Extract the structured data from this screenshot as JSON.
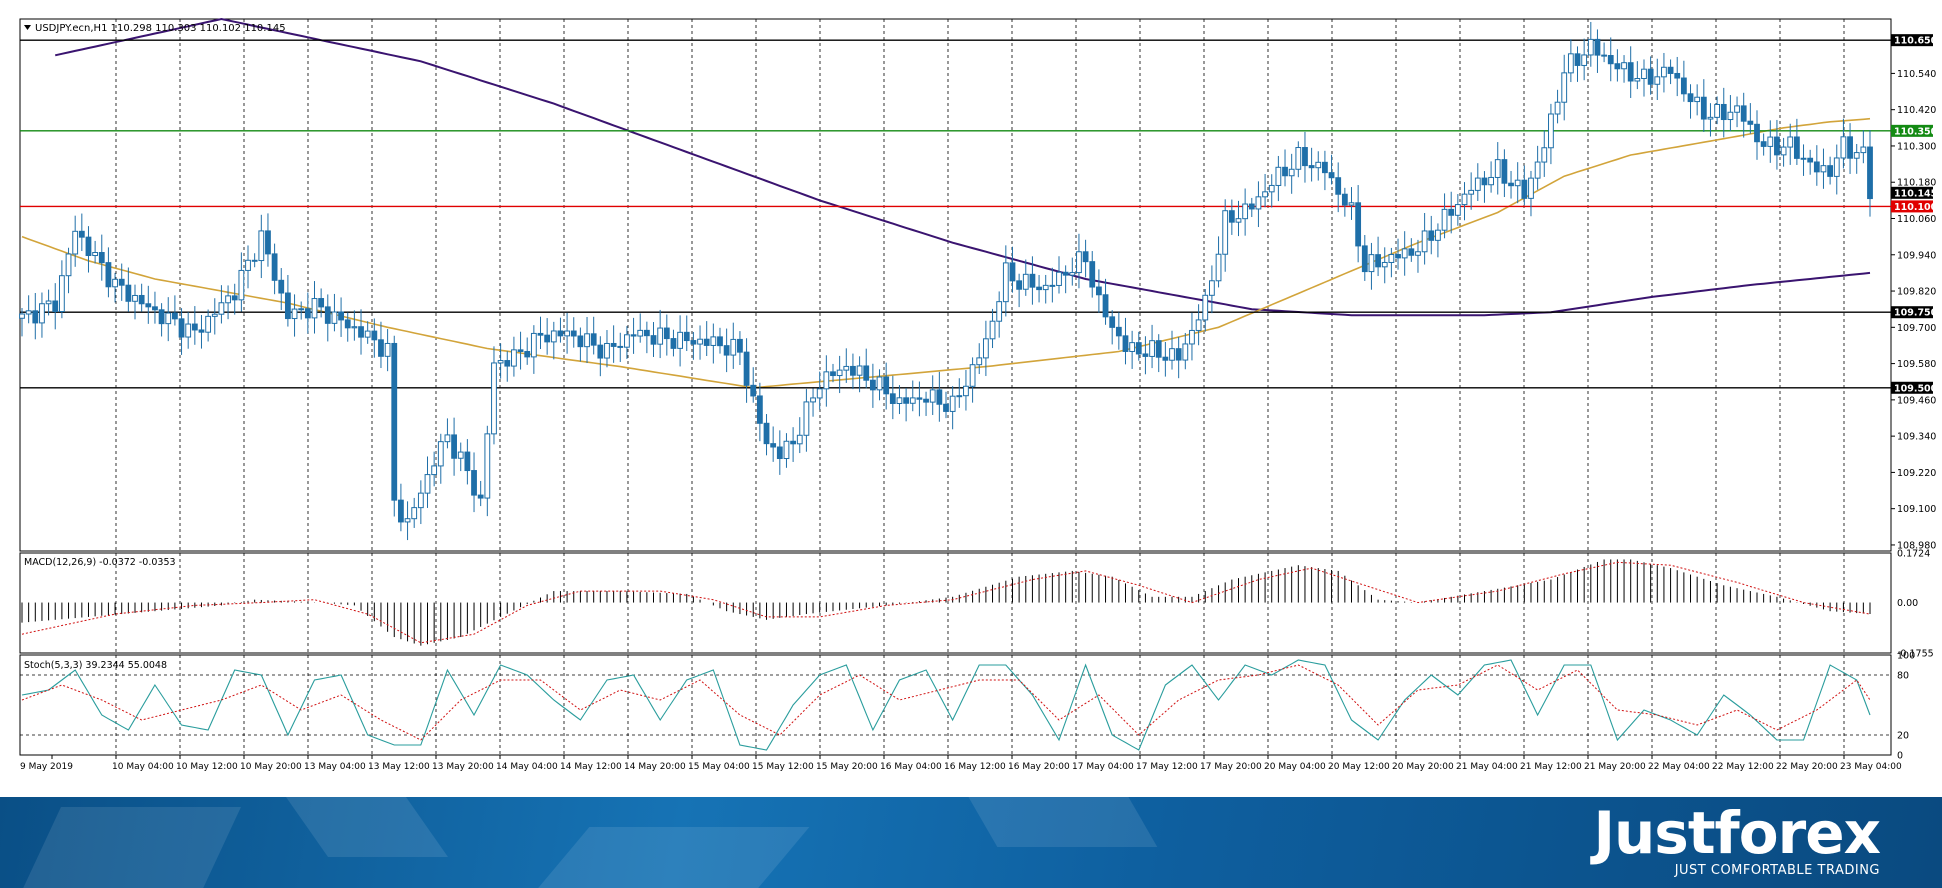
{
  "chart_data": [
    {
      "type": "candlestick",
      "title": "USDJPY.ecn,H1  110.298 110.303 110.102 110.145",
      "ylim": [
        108.96,
        110.72
      ],
      "y_ticks": [
        "110.540",
        "110.420",
        "110.300",
        "110.180",
        "110.060",
        "109.940",
        "109.820",
        "109.700",
        "109.580",
        "109.460",
        "109.340",
        "109.220",
        "109.100",
        "108.980"
      ],
      "x_ticks": [
        "9 May 2019",
        "10 May 04:00",
        "10 May 12:00",
        "10 May 20:00",
        "13 May 04:00",
        "13 May 12:00",
        "13 May 20:00",
        "14 May 04:00",
        "14 May 12:00",
        "14 May 20:00",
        "15 May 04:00",
        "15 May 12:00",
        "15 May 20:00",
        "16 May 04:00",
        "16 May 12:00",
        "16 May 20:00",
        "17 May 04:00",
        "17 May 12:00",
        "17 May 20:00",
        "20 May 04:00",
        "20 May 12:00",
        "20 May 20:00",
        "21 May 04:00",
        "21 May 12:00",
        "21 May 20:00",
        "22 May 04:00",
        "22 May 12:00",
        "22 May 20:00",
        "23 May 04:00"
      ],
      "levels": [
        {
          "label": "110.650",
          "value": 110.65,
          "color": "#000000"
        },
        {
          "label": "110.350",
          "value": 110.35,
          "color": "#138a13"
        },
        {
          "label": "110.100",
          "value": 110.1,
          "color": "#e00000"
        },
        {
          "label": "109.750",
          "value": 109.75,
          "color": "#000000"
        },
        {
          "label": "109.500",
          "value": 109.5,
          "color": "#000000"
        }
      ],
      "price_label": {
        "label": "110.145",
        "value": 110.145
      },
      "anchors": [
        [
          0,
          109.73
        ],
        [
          5,
          109.78
        ],
        [
          8,
          110.02
        ],
        [
          14,
          109.84
        ],
        [
          20,
          109.75
        ],
        [
          26,
          109.68
        ],
        [
          32,
          109.82
        ],
        [
          36,
          110.0
        ],
        [
          40,
          109.74
        ],
        [
          44,
          109.77
        ],
        [
          48,
          109.72
        ],
        [
          52,
          109.67
        ],
        [
          55,
          109.62
        ],
        [
          56,
          109.12
        ],
        [
          58,
          109.05
        ],
        [
          62,
          109.26
        ],
        [
          64,
          109.34
        ],
        [
          67,
          109.22
        ],
        [
          69,
          109.12
        ],
        [
          71,
          109.58
        ],
        [
          74,
          109.6
        ],
        [
          78,
          109.67
        ],
        [
          82,
          109.68
        ],
        [
          88,
          109.62
        ],
        [
          92,
          109.68
        ],
        [
          98,
          109.66
        ],
        [
          104,
          109.65
        ],
        [
          108,
          109.62
        ],
        [
          110,
          109.45
        ],
        [
          112,
          109.32
        ],
        [
          114,
          109.28
        ],
        [
          116,
          109.32
        ],
        [
          120,
          109.52
        ],
        [
          124,
          109.57
        ],
        [
          128,
          109.52
        ],
        [
          132,
          109.45
        ],
        [
          136,
          109.47
        ],
        [
          140,
          109.44
        ],
        [
          142,
          109.52
        ],
        [
          145,
          109.65
        ],
        [
          148,
          109.88
        ],
        [
          150,
          109.85
        ],
        [
          154,
          109.83
        ],
        [
          158,
          109.9
        ],
        [
          160,
          109.93
        ],
        [
          162,
          109.78
        ],
        [
          166,
          109.63
        ],
        [
          170,
          109.62
        ],
        [
          174,
          109.6
        ],
        [
          178,
          109.78
        ],
        [
          181,
          110.05
        ],
        [
          185,
          110.1
        ],
        [
          188,
          110.18
        ],
        [
          192,
          110.26
        ],
        [
          196,
          110.22
        ],
        [
          200,
          110.08
        ],
        [
          202,
          109.9
        ],
        [
          206,
          109.93
        ],
        [
          210,
          109.96
        ],
        [
          214,
          110.06
        ],
        [
          218,
          110.16
        ],
        [
          222,
          110.22
        ],
        [
          226,
          110.14
        ],
        [
          229,
          110.3
        ],
        [
          232,
          110.55
        ],
        [
          236,
          110.63
        ],
        [
          240,
          110.56
        ],
        [
          244,
          110.52
        ],
        [
          248,
          110.55
        ],
        [
          251,
          110.45
        ],
        [
          254,
          110.4
        ],
        [
          258,
          110.42
        ],
        [
          262,
          110.3
        ],
        [
          266,
          110.3
        ],
        [
          270,
          110.22
        ],
        [
          272,
          110.22
        ],
        [
          274,
          110.3
        ],
        [
          277,
          110.27
        ],
        [
          278,
          110.145
        ]
      ],
      "ma_slow": [
        [
          5,
          110.6
        ],
        [
          30,
          110.72
        ],
        [
          60,
          110.58
        ],
        [
          80,
          110.44
        ],
        [
          100,
          110.28
        ],
        [
          120,
          110.12
        ],
        [
          140,
          109.98
        ],
        [
          160,
          109.86
        ],
        [
          175,
          109.8
        ],
        [
          185,
          109.76
        ],
        [
          200,
          109.74
        ],
        [
          220,
          109.74
        ],
        [
          230,
          109.75
        ],
        [
          245,
          109.8
        ],
        [
          260,
          109.84
        ],
        [
          278,
          109.88
        ]
      ],
      "ma_fast": [
        [
          0,
          110.0
        ],
        [
          10,
          109.92
        ],
        [
          20,
          109.86
        ],
        [
          30,
          109.82
        ],
        [
          40,
          109.78
        ],
        [
          55,
          109.7
        ],
        [
          70,
          109.63
        ],
        [
          90,
          109.57
        ],
        [
          110,
          109.5
        ],
        [
          130,
          109.54
        ],
        [
          145,
          109.57
        ],
        [
          165,
          109.62
        ],
        [
          180,
          109.7
        ],
        [
          195,
          109.84
        ],
        [
          210,
          109.98
        ],
        [
          222,
          110.08
        ],
        [
          232,
          110.2
        ],
        [
          242,
          110.27
        ],
        [
          255,
          110.32
        ],
        [
          265,
          110.36
        ],
        [
          272,
          110.38
        ],
        [
          278,
          110.39
        ]
      ]
    },
    {
      "type": "bar+line",
      "title": "MACD(12,26,9) -0.0372 -0.0353",
      "ylim": [
        -0.1755,
        0.1724
      ],
      "y_ticks": [
        "0.1724",
        "0.00",
        "-0.1755"
      ],
      "main_anchors": [
        [
          0,
          -0.07
        ],
        [
          10,
          -0.05
        ],
        [
          20,
          -0.03
        ],
        [
          30,
          -0.01
        ],
        [
          35,
          0.01
        ],
        [
          45,
          0.0
        ],
        [
          50,
          -0.01
        ],
        [
          56,
          -0.12
        ],
        [
          60,
          -0.15
        ],
        [
          66,
          -0.12
        ],
        [
          72,
          -0.05
        ],
        [
          80,
          0.04
        ],
        [
          90,
          0.04
        ],
        [
          100,
          0.03
        ],
        [
          106,
          -0.03
        ],
        [
          112,
          -0.06
        ],
        [
          118,
          -0.04
        ],
        [
          130,
          -0.01
        ],
        [
          140,
          0.02
        ],
        [
          150,
          0.09
        ],
        [
          158,
          0.11
        ],
        [
          164,
          0.09
        ],
        [
          170,
          0.02
        ],
        [
          176,
          0.02
        ],
        [
          182,
          0.08
        ],
        [
          188,
          0.11
        ],
        [
          192,
          0.13
        ],
        [
          198,
          0.11
        ],
        [
          204,
          0.01
        ],
        [
          210,
          0.0
        ],
        [
          220,
          0.04
        ],
        [
          230,
          0.08
        ],
        [
          238,
          0.15
        ],
        [
          242,
          0.15
        ],
        [
          248,
          0.12
        ],
        [
          256,
          0.06
        ],
        [
          264,
          0.02
        ],
        [
          272,
          -0.03
        ],
        [
          278,
          -0.04
        ]
      ],
      "signal_anchors": [
        [
          0,
          -0.11
        ],
        [
          14,
          -0.04
        ],
        [
          26,
          -0.01
        ],
        [
          36,
          0.0
        ],
        [
          44,
          0.01
        ],
        [
          52,
          -0.04
        ],
        [
          60,
          -0.14
        ],
        [
          68,
          -0.11
        ],
        [
          76,
          -0.01
        ],
        [
          84,
          0.04
        ],
        [
          96,
          0.04
        ],
        [
          104,
          0.01
        ],
        [
          112,
          -0.05
        ],
        [
          120,
          -0.05
        ],
        [
          130,
          -0.01
        ],
        [
          140,
          0.01
        ],
        [
          152,
          0.08
        ],
        [
          160,
          0.11
        ],
        [
          168,
          0.06
        ],
        [
          176,
          0.0
        ],
        [
          186,
          0.08
        ],
        [
          194,
          0.12
        ],
        [
          202,
          0.06
        ],
        [
          210,
          0.0
        ],
        [
          222,
          0.04
        ],
        [
          232,
          0.1
        ],
        [
          240,
          0.14
        ],
        [
          248,
          0.13
        ],
        [
          258,
          0.07
        ],
        [
          268,
          0.0
        ],
        [
          278,
          -0.04
        ]
      ]
    },
    {
      "type": "line",
      "title": "Stoch(5,3,3) 39.2344 55.0048",
      "ylim": [
        0,
        100
      ],
      "y_ticks": [
        "100",
        "80",
        "20",
        "0"
      ],
      "main_anchors": [
        [
          0,
          60
        ],
        [
          4,
          65
        ],
        [
          8,
          85
        ],
        [
          12,
          40
        ],
        [
          16,
          25
        ],
        [
          20,
          70
        ],
        [
          24,
          30
        ],
        [
          28,
          25
        ],
        [
          32,
          85
        ],
        [
          36,
          80
        ],
        [
          40,
          20
        ],
        [
          44,
          75
        ],
        [
          48,
          80
        ],
        [
          52,
          20
        ],
        [
          56,
          10
        ],
        [
          60,
          10
        ],
        [
          64,
          85
        ],
        [
          68,
          40
        ],
        [
          72,
          90
        ],
        [
          76,
          80
        ],
        [
          80,
          55
        ],
        [
          84,
          35
        ],
        [
          88,
          75
        ],
        [
          92,
          80
        ],
        [
          96,
          35
        ],
        [
          100,
          75
        ],
        [
          104,
          85
        ],
        [
          108,
          10
        ],
        [
          112,
          5
        ],
        [
          116,
          50
        ],
        [
          120,
          80
        ],
        [
          124,
          90
        ],
        [
          128,
          25
        ],
        [
          132,
          75
        ],
        [
          136,
          85
        ],
        [
          140,
          35
        ],
        [
          144,
          90
        ],
        [
          148,
          90
        ],
        [
          152,
          60
        ],
        [
          156,
          15
        ],
        [
          160,
          90
        ],
        [
          164,
          20
        ],
        [
          168,
          5
        ],
        [
          172,
          70
        ],
        [
          176,
          90
        ],
        [
          180,
          55
        ],
        [
          184,
          90
        ],
        [
          188,
          80
        ],
        [
          192,
          95
        ],
        [
          196,
          90
        ],
        [
          200,
          35
        ],
        [
          204,
          15
        ],
        [
          208,
          55
        ],
        [
          212,
          80
        ],
        [
          216,
          60
        ],
        [
          220,
          90
        ],
        [
          224,
          95
        ],
        [
          228,
          40
        ],
        [
          232,
          90
        ],
        [
          236,
          90
        ],
        [
          240,
          15
        ],
        [
          244,
          45
        ],
        [
          248,
          35
        ],
        [
          252,
          20
        ],
        [
          256,
          60
        ],
        [
          260,
          40
        ],
        [
          264,
          15
        ],
        [
          268,
          15
        ],
        [
          272,
          90
        ],
        [
          276,
          75
        ],
        [
          278,
          40
        ]
      ],
      "signal_anchors": [
        [
          0,
          55
        ],
        [
          6,
          70
        ],
        [
          12,
          55
        ],
        [
          18,
          35
        ],
        [
          24,
          45
        ],
        [
          30,
          55
        ],
        [
          36,
          70
        ],
        [
          42,
          45
        ],
        [
          48,
          60
        ],
        [
          54,
          35
        ],
        [
          60,
          15
        ],
        [
          66,
          55
        ],
        [
          72,
          75
        ],
        [
          78,
          75
        ],
        [
          84,
          45
        ],
        [
          90,
          65
        ],
        [
          96,
          55
        ],
        [
          102,
          75
        ],
        [
          108,
          40
        ],
        [
          114,
          20
        ],
        [
          120,
          60
        ],
        [
          126,
          80
        ],
        [
          132,
          55
        ],
        [
          138,
          65
        ],
        [
          144,
          75
        ],
        [
          150,
          75
        ],
        [
          156,
          35
        ],
        [
          162,
          60
        ],
        [
          168,
          20
        ],
        [
          174,
          55
        ],
        [
          180,
          75
        ],
        [
          186,
          80
        ],
        [
          192,
          90
        ],
        [
          198,
          70
        ],
        [
          204,
          30
        ],
        [
          210,
          65
        ],
        [
          216,
          70
        ],
        [
          222,
          90
        ],
        [
          228,
          65
        ],
        [
          234,
          85
        ],
        [
          240,
          45
        ],
        [
          246,
          40
        ],
        [
          252,
          30
        ],
        [
          258,
          45
        ],
        [
          264,
          25
        ],
        [
          270,
          45
        ],
        [
          276,
          75
        ],
        [
          278,
          55
        ]
      ]
    }
  ],
  "footer": {
    "brand": "Justforex",
    "tagline": "JUST COMFORTABLE TRADING"
  }
}
